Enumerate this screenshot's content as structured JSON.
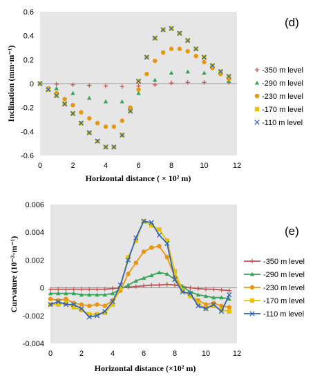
{
  "series_styles": [
    {
      "name": "-350 m level",
      "color": "#c0504d",
      "marker": "plus"
    },
    {
      "name": "-290 m level",
      "color": "#3aa35a",
      "marker": "triangle"
    },
    {
      "name": "-230 m level",
      "color": "#e8960c",
      "marker": "circle"
    },
    {
      "name": "-170 m level",
      "color": "#e6c300",
      "marker": "square"
    },
    {
      "name": "-110 m level",
      "color": "#2e63b6",
      "marker": "x"
    }
  ],
  "chart_data": [
    {
      "type": "scatter",
      "panel_label": "(d)",
      "xlabel": "Horizontal distance ( × 10² m)",
      "ylabel": "Inclination (mm·m⁻¹)",
      "xlim": [
        0,
        12
      ],
      "ylim": [
        -0.6,
        0.6
      ],
      "xticks": [
        0,
        2,
        4,
        6,
        8,
        10,
        12
      ],
      "yticks": [
        -0.6,
        -0.4,
        -0.2,
        0,
        0.2,
        0.4,
        0.6
      ],
      "ytick_labels": [
        "-0.6",
        "-0.4",
        "-0.2",
        "0",
        "0.2",
        "0.4",
        "0.6"
      ],
      "grid": false,
      "legend": "right",
      "series": [
        {
          "name": "-350 m level",
          "x": [
            0,
            1,
            2,
            3,
            4,
            5,
            6,
            7,
            8,
            9,
            10,
            11.5
          ],
          "y": [
            0,
            -0.005,
            -0.01,
            -0.015,
            -0.02,
            -0.025,
            -0.02,
            -0.01,
            0.005,
            0.01,
            0.01,
            0.01
          ]
        },
        {
          "name": "-290 m level",
          "x": [
            0,
            1,
            2,
            3,
            4,
            5,
            6,
            7,
            8,
            9,
            10,
            11.5
          ],
          "y": [
            0,
            -0.04,
            -0.08,
            -0.12,
            -0.15,
            -0.15,
            -0.08,
            0.03,
            0.09,
            0.1,
            0.09,
            0.02
          ]
        },
        {
          "name": "-230 m level",
          "x": [
            0,
            0.5,
            1,
            1.5,
            2,
            2.5,
            3,
            3.5,
            4,
            4.5,
            5,
            5.5,
            6,
            6.5,
            7,
            7.5,
            8,
            8.5,
            9,
            9.5,
            10,
            10.5,
            11,
            11.5
          ],
          "y": [
            0,
            -0.04,
            -0.08,
            -0.13,
            -0.18,
            -0.24,
            -0.29,
            -0.33,
            -0.36,
            -0.36,
            -0.31,
            -0.2,
            -0.05,
            0.08,
            0.19,
            0.26,
            0.29,
            0.29,
            0.27,
            0.23,
            0.18,
            0.13,
            0.08,
            0.04
          ]
        },
        {
          "name": "-170 m level",
          "x": [
            0,
            0.5,
            1,
            1.5,
            2,
            2.5,
            3,
            3.5,
            4,
            4.5,
            5,
            5.5,
            6,
            6.5,
            7,
            7.5,
            8,
            8.5,
            9,
            9.5,
            10,
            10.5,
            11,
            11.5
          ],
          "y": [
            0,
            -0.05,
            -0.1,
            -0.17,
            -0.25,
            -0.33,
            -0.41,
            -0.48,
            -0.53,
            -0.53,
            -0.43,
            -0.23,
            0.02,
            0.22,
            0.38,
            0.45,
            0.46,
            0.42,
            0.36,
            0.29,
            0.22,
            0.15,
            0.1,
            0.06
          ]
        },
        {
          "name": "-110 m level",
          "x": [
            0,
            0.5,
            1,
            1.5,
            2,
            2.5,
            3,
            3.5,
            4,
            4.5,
            5,
            5.5,
            6,
            6.5,
            7,
            7.5,
            8,
            8.5,
            9,
            9.5,
            10,
            10.5,
            11,
            11.5
          ],
          "y": [
            0,
            -0.05,
            -0.1,
            -0.17,
            -0.25,
            -0.33,
            -0.41,
            -0.48,
            -0.53,
            -0.53,
            -0.43,
            -0.23,
            0.02,
            0.22,
            0.38,
            0.45,
            0.46,
            0.42,
            0.36,
            0.29,
            0.22,
            0.15,
            0.1,
            0.06
          ]
        }
      ]
    },
    {
      "type": "line",
      "panel_label": "(e)",
      "xlabel": "Horizontal distance (×10² m)",
      "ylabel": "Curvature (10⁻³·m⁻¹)",
      "xlim": [
        0,
        12
      ],
      "ylim": [
        -0.004,
        0.006
      ],
      "xticks": [
        0,
        2,
        4,
        6,
        8,
        10,
        12
      ],
      "yticks": [
        -0.004,
        -0.002,
        0,
        0.002,
        0.004,
        0.006
      ],
      "ytick_labels": [
        "-0.004",
        "-0.002",
        "0",
        "0.002",
        "0.004",
        "0.006"
      ],
      "grid": false,
      "legend": "right",
      "series": [
        {
          "name": "-350 m level",
          "x": [
            0,
            0.5,
            1,
            1.5,
            2,
            2.5,
            3,
            3.5,
            4,
            4.5,
            5,
            5.5,
            6,
            6.5,
            7,
            7.5,
            8,
            8.5,
            9,
            9.5,
            10,
            10.5,
            11,
            11.5
          ],
          "y": [
            -0.0001,
            -0.0001,
            -0.0001,
            -0.0001,
            -0.0001,
            -0.0001,
            -0.0001,
            -0.0001,
            -5e-05,
            0,
            5e-05,
            0.0001,
            0.00015,
            0.0002,
            0.0002,
            0.00025,
            0.0002,
            0.0001,
            0,
            -5e-05,
            -0.0001,
            -0.0001,
            -0.00015,
            -0.0002
          ]
        },
        {
          "name": "-290 m level",
          "x": [
            0,
            0.5,
            1,
            1.5,
            2,
            2.5,
            3,
            3.5,
            4,
            4.5,
            5,
            5.5,
            6,
            6.5,
            7,
            7.5,
            8,
            8.5,
            9,
            9.5,
            10,
            10.5,
            11,
            11.5
          ],
          "y": [
            -0.0004,
            -0.0004,
            -0.0004,
            -0.0004,
            -0.0005,
            -0.0005,
            -0.0005,
            -0.0005,
            -0.0004,
            -0.0001,
            0.0002,
            0.0005,
            0.0007,
            0.0009,
            0.0011,
            0.001,
            0.0006,
            0.0001,
            -0.0003,
            -0.0005,
            -0.0006,
            -0.0007,
            -0.0007,
            -0.0008
          ]
        },
        {
          "name": "-230 m level",
          "x": [
            0,
            0.5,
            1,
            1.5,
            2,
            2.5,
            3,
            3.5,
            4,
            4.5,
            5,
            5.5,
            6,
            6.5,
            7,
            7.5,
            8,
            8.5,
            9,
            9.5,
            10,
            10.5,
            11,
            11.5
          ],
          "y": [
            -0.0008,
            -0.0009,
            -0.0008,
            -0.0011,
            -0.0012,
            -0.0013,
            -0.0012,
            -0.0013,
            -0.0009,
            -0.0002,
            0.001,
            0.0018,
            0.0026,
            0.0029,
            0.003,
            0.0022,
            0.0008,
            -0.0002,
            -0.0006,
            -0.0009,
            -0.0012,
            -0.0011,
            -0.0013,
            -0.0014
          ]
        },
        {
          "name": "-170 m level",
          "x": [
            0,
            0.5,
            1,
            1.5,
            2,
            2.5,
            3,
            3.5,
            4,
            4.5,
            5,
            5.5,
            6,
            6.5,
            7,
            7.5,
            8,
            8.5,
            9,
            9.5,
            10,
            10.5,
            11,
            11.5
          ],
          "y": [
            -0.0012,
            -0.0012,
            -0.0011,
            -0.0014,
            -0.0016,
            -0.0019,
            -0.0019,
            -0.0018,
            -0.0012,
            0,
            0.0022,
            0.0034,
            0.0048,
            0.0045,
            0.0042,
            0.0034,
            0.0012,
            -0.0002,
            -0.0006,
            -0.0011,
            -0.0015,
            -0.0013,
            -0.0016,
            -0.0017
          ]
        },
        {
          "name": "-110 m level",
          "x": [
            0,
            0.5,
            1,
            1.5,
            2,
            2.5,
            3,
            3.5,
            4,
            4.5,
            5,
            5.5,
            6,
            6.5,
            7,
            7.5,
            8,
            8.5,
            9,
            9.5,
            10,
            10.5,
            11,
            11.5
          ],
          "y": [
            -0.0012,
            -0.001,
            -0.0012,
            -0.0012,
            -0.0015,
            -0.0021,
            -0.002,
            -0.0017,
            -0.001,
            0.0002,
            0.002,
            0.0036,
            0.0048,
            0.0047,
            0.0038,
            0.0032,
            0.0006,
            -0.0003,
            -0.0004,
            -0.0013,
            -0.0015,
            -0.0012,
            -0.0017,
            -0.0005
          ]
        }
      ]
    }
  ]
}
